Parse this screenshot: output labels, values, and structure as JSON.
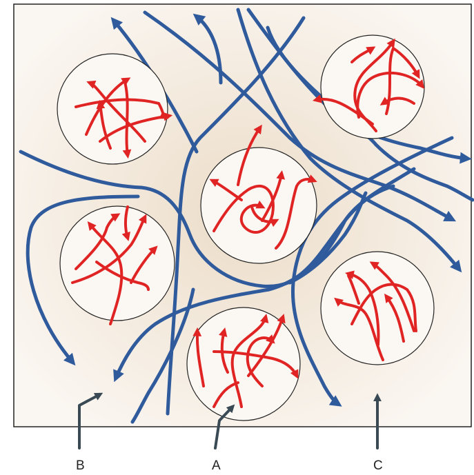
{
  "callouts": [
    {
      "id": "b",
      "label": "B"
    },
    {
      "id": "a",
      "label": "A"
    },
    {
      "id": "c",
      "label": "C"
    }
  ],
  "colors": {
    "background": "#f7f1e9",
    "border": "#222222",
    "blue_flow": "#2f5a9c",
    "red_flow": "#e02424",
    "circle_fill": "#fbf8f3",
    "pointer": "#3a4a55"
  },
  "legend": []
}
